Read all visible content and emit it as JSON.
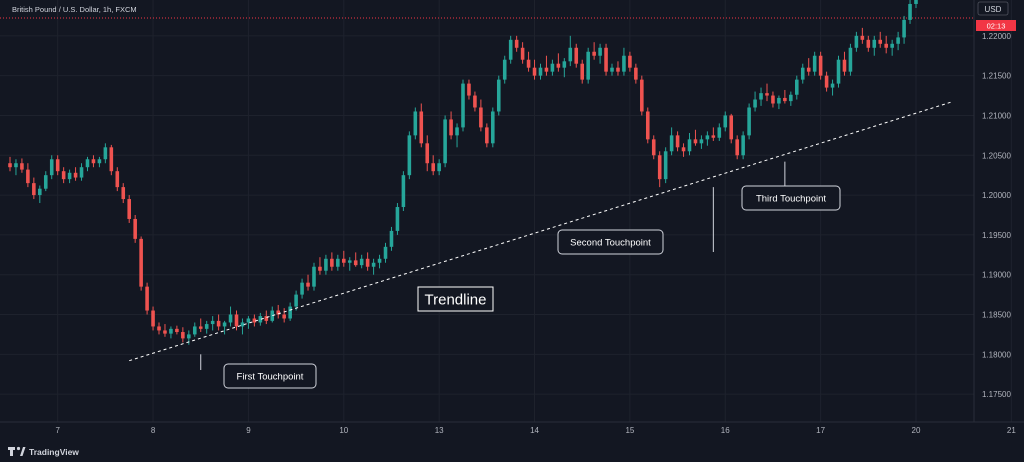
{
  "header": {
    "symbol": "British Pound / U.S. Dollar, 1h, FXCM"
  },
  "price_axis": {
    "currency": "USD",
    "countdown": "02:13"
  },
  "branding": {
    "name": "TradingView"
  },
  "colors": {
    "background": "#131722",
    "up": "#26a69a",
    "down": "#ef5350",
    "text": "#b2b5be",
    "countdown_bg": "#f23645",
    "annotation_border": "#d1d4dc"
  },
  "chart_data": {
    "type": "candlestick",
    "ylim": [
      1.1715,
      1.2245
    ],
    "y_ticks": [
      {
        "value": 1.22,
        "label": "1.22000"
      },
      {
        "value": 1.215,
        "label": "1.21500"
      },
      {
        "value": 1.21,
        "label": "1.21000"
      },
      {
        "value": 1.205,
        "label": "1.20500"
      },
      {
        "value": 1.2,
        "label": "1.20000"
      },
      {
        "value": 1.195,
        "label": "1.19500"
      },
      {
        "value": 1.19,
        "label": "1.19000"
      },
      {
        "value": 1.185,
        "label": "1.18500"
      },
      {
        "value": 1.18,
        "label": "1.18000"
      },
      {
        "value": 1.175,
        "label": "1.17500"
      }
    ],
    "x_ticks": [
      {
        "index": 8,
        "label": "7"
      },
      {
        "index": 24,
        "label": "8"
      },
      {
        "index": 40,
        "label": "9"
      },
      {
        "index": 56,
        "label": "10"
      },
      {
        "index": 72,
        "label": "13"
      },
      {
        "index": 88,
        "label": "14"
      },
      {
        "index": 104,
        "label": "15"
      },
      {
        "index": 120,
        "label": "16"
      },
      {
        "index": 136,
        "label": "17"
      },
      {
        "index": 152,
        "label": "20"
      },
      {
        "index": 168,
        "label": "21"
      }
    ],
    "candles": [
      [
        1.204,
        1.2048,
        1.203,
        1.2035
      ],
      [
        1.2035,
        1.2045,
        1.2025,
        1.204
      ],
      [
        1.204,
        1.2046,
        1.2028,
        1.2032
      ],
      [
        1.2032,
        1.204,
        1.201,
        1.2015
      ],
      [
        1.2015,
        1.2022,
        1.1995,
        1.2
      ],
      [
        1.2,
        1.2012,
        1.199,
        1.2008
      ],
      [
        1.2008,
        1.203,
        1.2005,
        1.2025
      ],
      [
        1.2025,
        1.205,
        1.202,
        1.2045
      ],
      [
        1.2045,
        1.205,
        1.2025,
        1.203
      ],
      [
        1.203,
        1.2035,
        1.2015,
        1.202
      ],
      [
        1.202,
        1.2032,
        1.2015,
        1.2028
      ],
      [
        1.2028,
        1.2035,
        1.2018,
        1.2022
      ],
      [
        1.2022,
        1.204,
        1.2018,
        1.2035
      ],
      [
        1.2035,
        1.2048,
        1.203,
        1.2045
      ],
      [
        1.2045,
        1.205,
        1.2035,
        1.204
      ],
      [
        1.204,
        1.2048,
        1.2035,
        1.2045
      ],
      [
        1.2045,
        1.2065,
        1.204,
        1.206
      ],
      [
        1.206,
        1.2063,
        1.2025,
        1.203
      ],
      [
        1.203,
        1.2035,
        1.2005,
        1.201
      ],
      [
        1.201,
        1.2015,
        1.199,
        1.1995
      ],
      [
        1.1995,
        1.2,
        1.1965,
        1.197
      ],
      [
        1.197,
        1.1975,
        1.194,
        1.1945
      ],
      [
        1.1945,
        1.1948,
        1.188,
        1.1885
      ],
      [
        1.1885,
        1.189,
        1.185,
        1.1855
      ],
      [
        1.1855,
        1.186,
        1.183,
        1.1835
      ],
      [
        1.1835,
        1.184,
        1.1825,
        1.183
      ],
      [
        1.183,
        1.1838,
        1.1822,
        1.1826
      ],
      [
        1.1826,
        1.1835,
        1.182,
        1.1832
      ],
      [
        1.1832,
        1.1836,
        1.1825,
        1.1828
      ],
      [
        1.1828,
        1.1834,
        1.1815,
        1.182
      ],
      [
        1.182,
        1.183,
        1.1812,
        1.1825
      ],
      [
        1.1825,
        1.184,
        1.1822,
        1.1835
      ],
      [
        1.1835,
        1.1845,
        1.1828,
        1.1832
      ],
      [
        1.1832,
        1.1842,
        1.1826,
        1.1838
      ],
      [
        1.1838,
        1.1848,
        1.183,
        1.1842
      ],
      [
        1.1842,
        1.185,
        1.183,
        1.1835
      ],
      [
        1.1835,
        1.1842,
        1.1825,
        1.184
      ],
      [
        1.184,
        1.186,
        1.1835,
        1.185
      ],
      [
        1.185,
        1.1855,
        1.183,
        1.1835
      ],
      [
        1.1835,
        1.1845,
        1.1825,
        1.184
      ],
      [
        1.184,
        1.1848,
        1.1832,
        1.1845
      ],
      [
        1.1845,
        1.185,
        1.1835,
        1.184
      ],
      [
        1.184,
        1.1852,
        1.1836,
        1.1848
      ],
      [
        1.1848,
        1.1855,
        1.1838,
        1.1842
      ],
      [
        1.1842,
        1.186,
        1.184,
        1.1855
      ],
      [
        1.1855,
        1.1862,
        1.1845,
        1.185
      ],
      [
        1.185,
        1.1858,
        1.184,
        1.1845
      ],
      [
        1.1845,
        1.1865,
        1.1842,
        1.186
      ],
      [
        1.186,
        1.188,
        1.1855,
        1.1875
      ],
      [
        1.1875,
        1.1895,
        1.187,
        1.189
      ],
      [
        1.189,
        1.19,
        1.188,
        1.1885
      ],
      [
        1.1885,
        1.1915,
        1.188,
        1.191
      ],
      [
        1.191,
        1.1922,
        1.19,
        1.1905
      ],
      [
        1.1905,
        1.1925,
        1.19,
        1.192
      ],
      [
        1.192,
        1.1928,
        1.1905,
        1.191
      ],
      [
        1.191,
        1.1925,
        1.1905,
        1.192
      ],
      [
        1.192,
        1.193,
        1.191,
        1.1915
      ],
      [
        1.1915,
        1.1922,
        1.1905,
        1.1918
      ],
      [
        1.1918,
        1.1928,
        1.191,
        1.1912
      ],
      [
        1.1912,
        1.1925,
        1.1908,
        1.192
      ],
      [
        1.192,
        1.1928,
        1.1905,
        1.191
      ],
      [
        1.191,
        1.192,
        1.19,
        1.1915
      ],
      [
        1.1915,
        1.1925,
        1.1908,
        1.192
      ],
      [
        1.192,
        1.194,
        1.1915,
        1.1935
      ],
      [
        1.1935,
        1.196,
        1.193,
        1.1955
      ],
      [
        1.1955,
        1.199,
        1.195,
        1.1985
      ],
      [
        1.1985,
        1.203,
        1.198,
        1.2025
      ],
      [
        1.2025,
        1.208,
        1.202,
        1.2075
      ],
      [
        1.2075,
        1.211,
        1.207,
        1.2105
      ],
      [
        1.2105,
        1.2115,
        1.206,
        1.2065
      ],
      [
        1.2065,
        1.2075,
        1.203,
        1.204
      ],
      [
        1.204,
        1.205,
        1.2025,
        1.203
      ],
      [
        1.203,
        1.2045,
        1.2025,
        1.204
      ],
      [
        1.204,
        1.21,
        1.2035,
        1.2095
      ],
      [
        1.2095,
        1.2105,
        1.207,
        1.2075
      ],
      [
        1.2075,
        1.209,
        1.206,
        1.2085
      ],
      [
        1.2085,
        1.2145,
        1.208,
        1.214
      ],
      [
        1.214,
        1.2145,
        1.212,
        1.2125
      ],
      [
        1.2125,
        1.213,
        1.2105,
        1.211
      ],
      [
        1.211,
        1.212,
        1.208,
        1.2085
      ],
      [
        1.2085,
        1.209,
        1.206,
        1.2065
      ],
      [
        1.2065,
        1.211,
        1.206,
        1.2105
      ],
      [
        1.2105,
        1.215,
        1.21,
        1.2145
      ],
      [
        1.2145,
        1.2175,
        1.214,
        1.217
      ],
      [
        1.217,
        1.22,
        1.2165,
        1.2195
      ],
      [
        1.2195,
        1.22,
        1.218,
        1.2185
      ],
      [
        1.2185,
        1.2192,
        1.2165,
        1.217
      ],
      [
        1.217,
        1.218,
        1.2155,
        1.216
      ],
      [
        1.216,
        1.217,
        1.2145,
        1.215
      ],
      [
        1.215,
        1.2165,
        1.2145,
        1.216
      ],
      [
        1.216,
        1.2175,
        1.215,
        1.2155
      ],
      [
        1.2155,
        1.217,
        1.215,
        1.2165
      ],
      [
        1.2165,
        1.2178,
        1.2155,
        1.216
      ],
      [
        1.216,
        1.2172,
        1.2148,
        1.2168
      ],
      [
        1.2168,
        1.22,
        1.2162,
        1.2185
      ],
      [
        1.2185,
        1.219,
        1.216,
        1.2165
      ],
      [
        1.2165,
        1.217,
        1.214,
        1.2145
      ],
      [
        1.2145,
        1.2185,
        1.214,
        1.218
      ],
      [
        1.218,
        1.2192,
        1.217,
        1.2175
      ],
      [
        1.2175,
        1.219,
        1.2165,
        1.2185
      ],
      [
        1.2185,
        1.219,
        1.215,
        1.2155
      ],
      [
        1.2155,
        1.2165,
        1.215,
        1.216
      ],
      [
        1.216,
        1.2168,
        1.215,
        1.2155
      ],
      [
        1.2155,
        1.2185,
        1.215,
        1.2175
      ],
      [
        1.2175,
        1.218,
        1.2155,
        1.216
      ],
      [
        1.216,
        1.2165,
        1.214,
        1.2145
      ],
      [
        1.2145,
        1.215,
        1.21,
        1.2105
      ],
      [
        1.2105,
        1.211,
        1.2065,
        1.207
      ],
      [
        1.207,
        1.2075,
        1.2045,
        1.205
      ],
      [
        1.205,
        1.2055,
        1.201,
        1.202
      ],
      [
        1.202,
        1.206,
        1.2015,
        1.2055
      ],
      [
        1.2055,
        1.2085,
        1.205,
        1.2075
      ],
      [
        1.2075,
        1.208,
        1.2055,
        1.206
      ],
      [
        1.206,
        1.2065,
        1.2048,
        1.2055
      ],
      [
        1.2055,
        1.2078,
        1.205,
        1.207
      ],
      [
        1.207,
        1.2082,
        1.2062,
        1.2065
      ],
      [
        1.2065,
        1.2075,
        1.2058,
        1.207
      ],
      [
        1.207,
        1.208,
        1.2062,
        1.2075
      ],
      [
        1.2075,
        1.2085,
        1.2068,
        1.2072
      ],
      [
        1.2072,
        1.209,
        1.2068,
        1.2085
      ],
      [
        1.2085,
        1.2105,
        1.208,
        1.21
      ],
      [
        1.21,
        1.2102,
        1.2065,
        1.207
      ],
      [
        1.207,
        1.2075,
        1.2045,
        1.205
      ],
      [
        1.205,
        1.208,
        1.2045,
        1.2075
      ],
      [
        1.2075,
        1.2115,
        1.207,
        1.211
      ],
      [
        1.211,
        1.213,
        1.2105,
        1.212
      ],
      [
        1.212,
        1.2135,
        1.2112,
        1.2128
      ],
      [
        1.2128,
        1.214,
        1.2118,
        1.2125
      ],
      [
        1.2125,
        1.213,
        1.211,
        1.2115
      ],
      [
        1.2115,
        1.2125,
        1.2108,
        1.2122
      ],
      [
        1.2122,
        1.2132,
        1.2115,
        1.2118
      ],
      [
        1.2118,
        1.213,
        1.2112,
        1.2126
      ],
      [
        1.2126,
        1.215,
        1.212,
        1.2145
      ],
      [
        1.2145,
        1.2165,
        1.214,
        1.216
      ],
      [
        1.216,
        1.2172,
        1.215,
        1.2155
      ],
      [
        1.2155,
        1.218,
        1.215,
        1.2175
      ],
      [
        1.2175,
        1.218,
        1.2145,
        1.215
      ],
      [
        1.215,
        1.2155,
        1.213,
        1.2135
      ],
      [
        1.2135,
        1.2145,
        1.2125,
        1.214
      ],
      [
        1.214,
        1.2175,
        1.2135,
        1.217
      ],
      [
        1.217,
        1.218,
        1.215,
        1.2155
      ],
      [
        1.2155,
        1.219,
        1.215,
        1.2185
      ],
      [
        1.2185,
        1.2205,
        1.218,
        1.22
      ],
      [
        1.22,
        1.221,
        1.219,
        1.2195
      ],
      [
        1.2195,
        1.22,
        1.218,
        1.2185
      ],
      [
        1.2185,
        1.22,
        1.2175,
        1.2195
      ],
      [
        1.2195,
        1.2205,
        1.2185,
        1.219
      ],
      [
        1.219,
        1.22,
        1.2178,
        1.2185
      ],
      [
        1.2185,
        1.2195,
        1.2175,
        1.219
      ],
      [
        1.219,
        1.2205,
        1.2182,
        1.2198
      ],
      [
        1.2198,
        1.2225,
        1.219,
        1.222
      ],
      [
        1.222,
        1.2245,
        1.2215,
        1.224
      ],
      [
        1.224,
        1.2252,
        1.2235,
        1.2248
      ]
    ],
    "trendline": {
      "start": {
        "index": 20,
        "value": 1.1792
      },
      "end": {
        "index": 158,
        "value": 1.2117
      }
    },
    "annotations": [
      {
        "label": "First Touchpoint",
        "index": 32,
        "value": 1.18
      },
      {
        "label": "Second Touchpoint",
        "index": 118,
        "value": 1.201
      },
      {
        "label": "Third Touchpoint",
        "index": 130,
        "value": 1.2042
      }
    ],
    "title_label": "Trendline"
  }
}
